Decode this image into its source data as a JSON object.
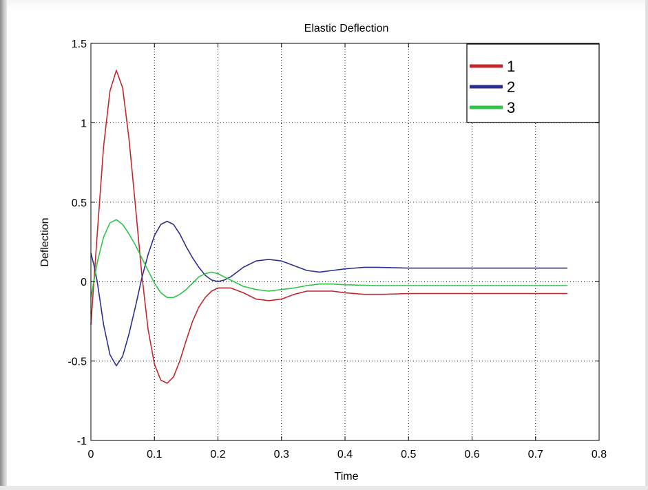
{
  "chart_data": {
    "type": "line",
    "title": "Elastic Deflection",
    "xlabel": "Time",
    "ylabel": "Deflection",
    "xlim": [
      0,
      0.8
    ],
    "ylim": [
      -1,
      1.5
    ],
    "xticks": [
      "0",
      "0.1",
      "0.2",
      "0.3",
      "0.4",
      "0.5",
      "0.6",
      "0.7",
      "0.8"
    ],
    "yticks": [
      "-1",
      "-0.5",
      "0",
      "0.5",
      "1",
      "1.5"
    ],
    "grid": true,
    "legend_position": "top-right",
    "series": [
      {
        "name": "1",
        "color": "#c0282d",
        "points": [
          [
            0,
            -0.27
          ],
          [
            0.01,
            0.3
          ],
          [
            0.02,
            0.85
          ],
          [
            0.03,
            1.2
          ],
          [
            0.04,
            1.33
          ],
          [
            0.05,
            1.22
          ],
          [
            0.06,
            0.9
          ],
          [
            0.07,
            0.48
          ],
          [
            0.08,
            0.05
          ],
          [
            0.09,
            -0.3
          ],
          [
            0.1,
            -0.52
          ],
          [
            0.11,
            -0.62
          ],
          [
            0.12,
            -0.64
          ],
          [
            0.13,
            -0.6
          ],
          [
            0.14,
            -0.5
          ],
          [
            0.15,
            -0.37
          ],
          [
            0.16,
            -0.25
          ],
          [
            0.17,
            -0.16
          ],
          [
            0.18,
            -0.1
          ],
          [
            0.19,
            -0.06
          ],
          [
            0.2,
            -0.04
          ],
          [
            0.22,
            -0.04
          ],
          [
            0.24,
            -0.07
          ],
          [
            0.26,
            -0.11
          ],
          [
            0.28,
            -0.12
          ],
          [
            0.3,
            -0.11
          ],
          [
            0.32,
            -0.08
          ],
          [
            0.34,
            -0.06
          ],
          [
            0.36,
            -0.06
          ],
          [
            0.38,
            -0.06
          ],
          [
            0.4,
            -0.07
          ],
          [
            0.43,
            -0.08
          ],
          [
            0.46,
            -0.08
          ],
          [
            0.5,
            -0.075
          ],
          [
            0.6,
            -0.075
          ],
          [
            0.7,
            -0.075
          ],
          [
            0.75,
            -0.075
          ]
        ]
      },
      {
        "name": "2",
        "color": "#2b2f8f",
        "points": [
          [
            0,
            0.18
          ],
          [
            0.005,
            0.1
          ],
          [
            0.01,
            0.0
          ],
          [
            0.02,
            -0.27
          ],
          [
            0.03,
            -0.46
          ],
          [
            0.04,
            -0.53
          ],
          [
            0.05,
            -0.47
          ],
          [
            0.06,
            -0.33
          ],
          [
            0.07,
            -0.16
          ],
          [
            0.08,
            0.02
          ],
          [
            0.09,
            0.17
          ],
          [
            0.1,
            0.29
          ],
          [
            0.11,
            0.36
          ],
          [
            0.12,
            0.38
          ],
          [
            0.13,
            0.36
          ],
          [
            0.14,
            0.3
          ],
          [
            0.15,
            0.22
          ],
          [
            0.16,
            0.15
          ],
          [
            0.17,
            0.09
          ],
          [
            0.18,
            0.04
          ],
          [
            0.19,
            0.01
          ],
          [
            0.2,
            0.0
          ],
          [
            0.21,
            0.01
          ],
          [
            0.22,
            0.03
          ],
          [
            0.24,
            0.09
          ],
          [
            0.26,
            0.13
          ],
          [
            0.28,
            0.14
          ],
          [
            0.3,
            0.13
          ],
          [
            0.32,
            0.1
          ],
          [
            0.34,
            0.07
          ],
          [
            0.36,
            0.06
          ],
          [
            0.38,
            0.07
          ],
          [
            0.4,
            0.08
          ],
          [
            0.43,
            0.09
          ],
          [
            0.45,
            0.09
          ],
          [
            0.5,
            0.085
          ],
          [
            0.6,
            0.085
          ],
          [
            0.7,
            0.085
          ],
          [
            0.75,
            0.085
          ]
        ]
      },
      {
        "name": "3",
        "color": "#2ec44a",
        "points": [
          [
            0,
            -0.1
          ],
          [
            0.01,
            0.12
          ],
          [
            0.02,
            0.28
          ],
          [
            0.03,
            0.37
          ],
          [
            0.04,
            0.39
          ],
          [
            0.05,
            0.36
          ],
          [
            0.06,
            0.3
          ],
          [
            0.07,
            0.23
          ],
          [
            0.08,
            0.15
          ],
          [
            0.09,
            0.07
          ],
          [
            0.1,
            -0.01
          ],
          [
            0.11,
            -0.07
          ],
          [
            0.12,
            -0.1
          ],
          [
            0.13,
            -0.1
          ],
          [
            0.14,
            -0.08
          ],
          [
            0.15,
            -0.05
          ],
          [
            0.16,
            -0.01
          ],
          [
            0.17,
            0.03
          ],
          [
            0.18,
            0.05
          ],
          [
            0.19,
            0.06
          ],
          [
            0.2,
            0.05
          ],
          [
            0.21,
            0.03
          ],
          [
            0.22,
            0.01
          ],
          [
            0.24,
            -0.03
          ],
          [
            0.26,
            -0.05
          ],
          [
            0.28,
            -0.06
          ],
          [
            0.3,
            -0.05
          ],
          [
            0.32,
            -0.04
          ],
          [
            0.34,
            -0.025
          ],
          [
            0.36,
            -0.015
          ],
          [
            0.38,
            -0.015
          ],
          [
            0.4,
            -0.02
          ],
          [
            0.45,
            -0.025
          ],
          [
            0.5,
            -0.025
          ],
          [
            0.6,
            -0.025
          ],
          [
            0.7,
            -0.025
          ],
          [
            0.75,
            -0.025
          ]
        ]
      }
    ]
  }
}
